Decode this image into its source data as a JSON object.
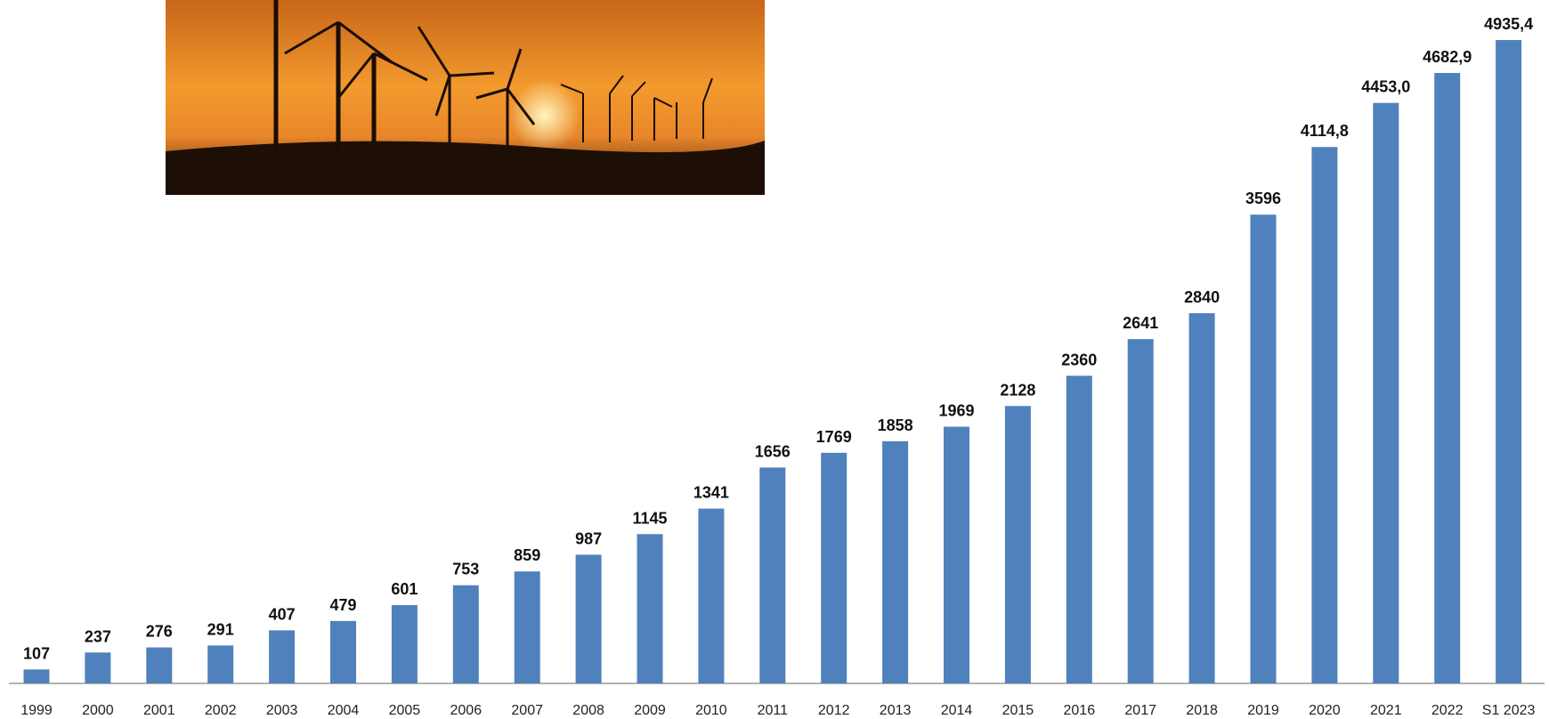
{
  "chart_data": {
    "type": "bar",
    "color": "#4f81bd",
    "categories": [
      "1999",
      "2000",
      "2001",
      "2002",
      "2003",
      "2004",
      "2005",
      "2006",
      "2007",
      "2008",
      "2009",
      "2010",
      "2011",
      "2012",
      "2013",
      "2014",
      "2015",
      "2016",
      "2017",
      "2018",
      "2019",
      "2020",
      "2021",
      "2022",
      "S1 2023"
    ],
    "values": [
      107,
      237,
      276,
      291,
      407,
      479,
      601,
      753,
      859,
      987,
      1145,
      1341,
      1656,
      1769,
      1858,
      1969,
      2128,
      2360,
      2641,
      2840,
      3596,
      4114.8,
      4453.0,
      4682.9,
      4935.4
    ],
    "value_labels": [
      "107",
      "237",
      "276",
      "291",
      "407",
      "479",
      "601",
      "753",
      "859",
      "987",
      "1145",
      "1341",
      "1656",
      "1769",
      "1858",
      "1969",
      "2128",
      "2360",
      "2641",
      "2840",
      "3596",
      "4114,8",
      "4453,0",
      "4682,9",
      "4935,4"
    ]
  }
}
